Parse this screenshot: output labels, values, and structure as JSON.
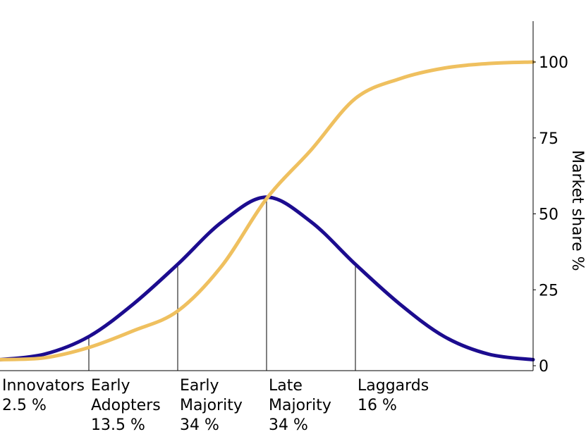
{
  "chart_data": {
    "type": "line",
    "title": "",
    "xlabel": "",
    "ylabel": "Market share %",
    "ylim": [
      0,
      100
    ],
    "yticks": [
      0,
      25,
      50,
      75,
      100
    ],
    "ytick_labels": [
      "0",
      "25",
      "50",
      "75",
      "100"
    ],
    "y_axis_side": "right",
    "grid": false,
    "x_domain": [
      -3,
      3
    ],
    "series": [
      {
        "key": "adoption",
        "color": "#1c0c8f",
        "x": [
          -3,
          -2.5,
          -2,
          -1.5,
          -1,
          -0.5,
          0,
          0.5,
          1,
          1.5,
          2,
          2.5,
          3
        ],
        "values": [
          2,
          3.8,
          9.6,
          20.3,
          33.4,
          47.4,
          55.5,
          47.4,
          33.4,
          20.3,
          9.6,
          3.8,
          2
        ]
      },
      {
        "key": "cumulative",
        "color": "#efc05f",
        "x": [
          -3,
          -2.5,
          -2,
          -1.5,
          -1,
          -0.5,
          0,
          0.5,
          1,
          1.5,
          2,
          2.5,
          3
        ],
        "values": [
          2,
          2.6,
          6,
          11.5,
          18,
          33,
          55,
          71,
          88,
          94.5,
          98,
          99.5,
          100
        ]
      }
    ],
    "category_boundaries_x": [
      -2,
      -1,
      0,
      1
    ],
    "categories": [
      {
        "lines": [
          "Innovators",
          "2.5 %"
        ]
      },
      {
        "lines": [
          "Early",
          "Adopters",
          "13.5 %"
        ]
      },
      {
        "lines": [
          "Early",
          "Majority",
          "34 %"
        ]
      },
      {
        "lines": [
          "Late",
          "Majority",
          "34 %"
        ]
      },
      {
        "lines": [
          "Laggards",
          "16 %"
        ]
      }
    ]
  }
}
